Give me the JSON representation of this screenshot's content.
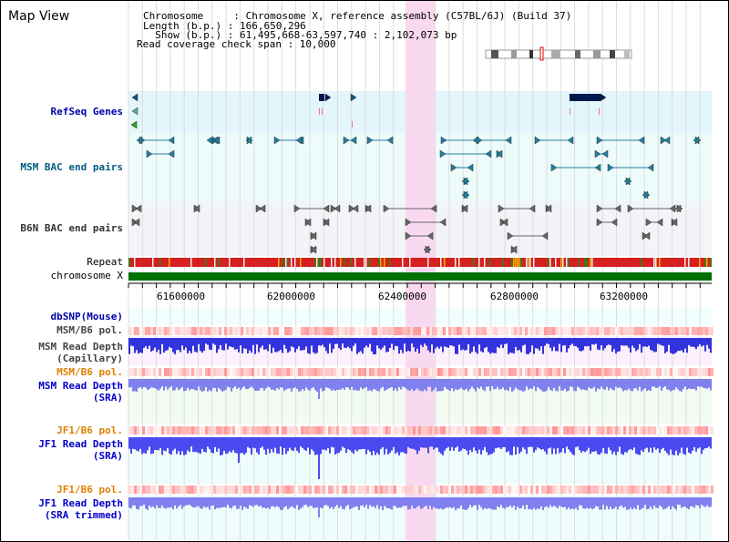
{
  "app": {
    "title": "Map View"
  },
  "info": {
    "chromosome": "Chromosome     : Chromosome X, reference assembly (C57BL/6J) (Build 37)",
    "length": "Length (b.p.) : 166,650,296",
    "show": "  Show (b.p.) : 61,495,668-63,597,740 : 2,102,073 bp",
    "coverage": "Read coverage check span : 10,000"
  },
  "tracks": {
    "refseq": "RefSeq Genes",
    "msm_bac": "MSM BAC end pairs",
    "b6n_bac": "B6N BAC end pairs",
    "repeat": "Repeat",
    "chromosome": "chromosome X",
    "dbsnp": "dbSNP(Mouse)",
    "msm_pol": "MSM/B6 pol.",
    "msm_depth_cap_1": "MSM Read Depth",
    "msm_depth_cap_2": "(Capillary)",
    "msm_pol_2": "MSM/B6 pol.",
    "msm_depth_sra_1": "MSM Read Depth",
    "msm_depth_sra_2": "(SRA)",
    "jf1_pol": "JF1/B6 pol.",
    "jf1_depth_1": "JF1 Read Depth",
    "jf1_depth_2": "(SRA)",
    "jf1_pol_2": "JF1/B6 pol.",
    "jf1_trim_1": "JF1 Read Depth",
    "jf1_trim_2": "(SRA trimmed)"
  },
  "axis": {
    "ticks": [
      "61600000",
      "62000000",
      "62400000",
      "62800000",
      "63200000"
    ]
  },
  "colors": {
    "refseq_label": "#0000aa",
    "msm_label": "#005b7f",
    "b6n_label": "#333333",
    "orange_label": "#e08000",
    "blue_label": "#0000cc",
    "highlight": "#f9d9f0",
    "chromosome_bar": "#007000"
  }
}
